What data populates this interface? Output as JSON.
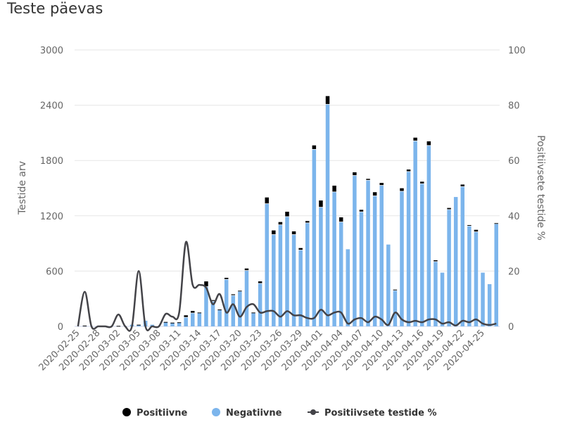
{
  "title": "Teste päevas",
  "chart_data": {
    "type": "bar",
    "stacked": true,
    "title": "Teste päevas",
    "ylabel": "Testide arv",
    "ylabel_right": "Positiivsete testide %",
    "ylim": [
      0,
      3000
    ],
    "ylim_right": [
      0,
      100
    ],
    "yticks": [
      "0",
      "600",
      "1200",
      "1800",
      "2400",
      "3000"
    ],
    "yticks_right": [
      "0",
      "20",
      "40",
      "60",
      "80",
      "100"
    ],
    "grid": true,
    "legend_position": "bottom",
    "colors": {
      "Positiivne": "#000000",
      "Negatiivne": "#7cb5ec",
      "Positiivsete testide %": "#434348"
    },
    "categories": [
      "2020-02-25",
      "2020-02-26",
      "2020-02-27",
      "2020-02-28",
      "2020-02-29",
      "2020-03-01",
      "2020-03-02",
      "2020-03-03",
      "2020-03-04",
      "2020-03-05",
      "2020-03-06",
      "2020-03-07",
      "2020-03-08",
      "2020-03-09",
      "2020-03-10",
      "2020-03-11",
      "2020-03-12",
      "2020-03-13",
      "2020-03-14",
      "2020-03-15",
      "2020-03-16",
      "2020-03-17",
      "2020-03-18",
      "2020-03-19",
      "2020-03-20",
      "2020-03-21",
      "2020-03-22",
      "2020-03-23",
      "2020-03-24",
      "2020-03-25",
      "2020-03-26",
      "2020-03-27",
      "2020-03-28",
      "2020-03-29",
      "2020-03-30",
      "2020-03-31",
      "2020-04-01",
      "2020-04-02",
      "2020-04-03",
      "2020-04-04",
      "2020-04-05",
      "2020-04-06",
      "2020-04-07",
      "2020-04-08",
      "2020-04-09",
      "2020-04-10",
      "2020-04-11",
      "2020-04-12",
      "2020-04-13",
      "2020-04-14",
      "2020-04-15",
      "2020-04-16",
      "2020-04-17",
      "2020-04-18",
      "2020-04-19",
      "2020-04-20",
      "2020-04-21",
      "2020-04-22",
      "2020-04-23",
      "2020-04-24",
      "2020-04-25",
      "2020-04-26",
      "2020-04-27"
    ],
    "series": [
      {
        "name": "Positiivne",
        "type": "bar",
        "values": [
          0,
          1,
          0,
          0,
          0,
          0,
          1,
          0,
          0,
          3,
          0,
          0,
          0,
          2,
          1,
          2,
          25,
          25,
          8,
          60,
          15,
          8,
          20,
          15,
          10,
          25,
          8,
          25,
          71,
          48,
          33,
          56,
          38,
          25,
          23,
          46,
          76,
          92,
          71,
          53,
          0,
          38,
          25,
          18,
          43,
          30,
          0,
          13,
          36,
          25,
          38,
          25,
          48,
          18,
          0,
          20,
          0,
          25,
          13,
          25,
          0,
          0,
          10
        ]
      },
      {
        "name": "Negatiivne",
        "type": "bar",
        "values": [
          0,
          7,
          0,
          0,
          0,
          0,
          4,
          0,
          18,
          15,
          61,
          18,
          0,
          46,
          39,
          42,
          95,
          142,
          142,
          428,
          270,
          175,
          507,
          333,
          377,
          603,
          142,
          463,
          1328,
          993,
          1099,
          1188,
          993,
          825,
          1120,
          1918,
          1290,
          2407,
          1456,
          1130,
          837,
          1634,
          1240,
          1583,
          1413,
          1527,
          888,
          386,
          1463,
          1677,
          2010,
          1545,
          1960,
          700,
          583,
          1265,
          1404,
          1514,
          1086,
          1023,
          583,
          458,
          1110
        ]
      },
      {
        "name": "Positiivsete testide %",
        "type": "line",
        "values": [
          0,
          12.5,
          0,
          0,
          0,
          0,
          4.3,
          0,
          0,
          20,
          0,
          0,
          0,
          4.5,
          3.5,
          5,
          30.5,
          15,
          15,
          14,
          8,
          11.7,
          5,
          8,
          3.5,
          7,
          8,
          5,
          5.5,
          5.5,
          3.5,
          5.5,
          4,
          4,
          3,
          3,
          6,
          4,
          5,
          5,
          1,
          2.5,
          3,
          1.5,
          3.5,
          2.5,
          0.5,
          5,
          2.5,
          1.5,
          2,
          1.5,
          2.5,
          2.5,
          1,
          1.5,
          0.3,
          2,
          1.5,
          2.5,
          1,
          0.5,
          1
        ]
      }
    ]
  },
  "legend": [
    "Positiivne",
    "Negatiivne",
    "Positiivsete testide %"
  ]
}
